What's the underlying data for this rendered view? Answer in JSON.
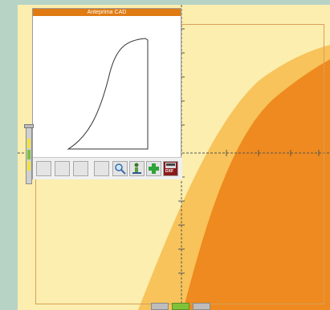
{
  "window": {
    "title": "Anteprima CAD"
  },
  "toolbar": {
    "buttons": [
      {
        "name": "blank-1"
      },
      {
        "name": "blank-2"
      },
      {
        "name": "blank-3"
      },
      {
        "name": "blank-4"
      },
      {
        "name": "zoom",
        "icon": "magnifier-icon"
      },
      {
        "name": "pan",
        "icon": "pan-tool-icon"
      },
      {
        "name": "add",
        "icon": "plus-icon"
      },
      {
        "name": "export",
        "icon": "dxf-export-icon",
        "label": "DXF"
      }
    ]
  },
  "colors": {
    "background": "#b7d3c6",
    "canvas": "#fbeeae",
    "light_fill": "#f7c35a",
    "dark_fill": "#ee8a1f",
    "title_bar": "#e07b12",
    "slider_yellow": "#f2e33a",
    "slider_green": "#7ec23a"
  },
  "vertical_slider": {
    "level": 0.08
  },
  "bottom_tabs": {
    "active_index": 1
  }
}
